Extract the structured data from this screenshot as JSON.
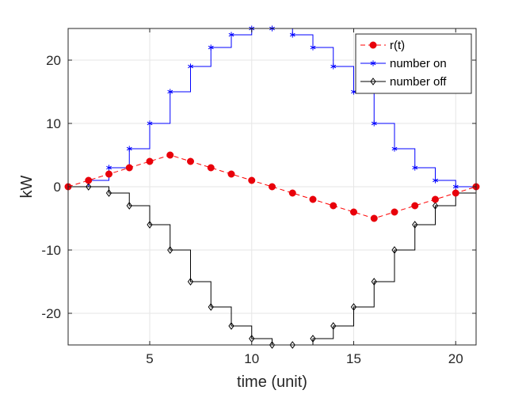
{
  "chart_data": {
    "type": "line",
    "title": "",
    "xlabel": "time (unit)",
    "ylabel": "kW",
    "xlim": [
      1,
      21
    ],
    "ylim": [
      -25,
      25
    ],
    "xticks": [
      5,
      10,
      15,
      20
    ],
    "yticks": [
      -20,
      -10,
      0,
      10,
      20
    ],
    "grid": true,
    "legend_location": "top-right",
    "x": [
      1,
      2,
      3,
      4,
      5,
      6,
      7,
      8,
      9,
      10,
      11,
      12,
      13,
      14,
      15,
      16,
      17,
      18,
      19,
      20,
      21
    ],
    "series": [
      {
        "name": "r(t)",
        "style": "dashed",
        "marker": "circle-filled",
        "color": "#ff0000",
        "marker_color": "#e8000b",
        "values": [
          0,
          1,
          2,
          3,
          4,
          5,
          4,
          3,
          2,
          1,
          0,
          -1,
          -2,
          -3,
          -4,
          -5,
          -4,
          -3,
          -2,
          -1,
          0
        ]
      },
      {
        "name": "number on",
        "style": "stairs",
        "marker": "asterisk",
        "color": "#0000ff",
        "values": [
          0,
          1,
          3,
          6,
          10,
          15,
          19,
          22,
          24,
          25,
          25,
          24,
          22,
          19,
          15,
          10,
          6,
          3,
          1,
          0,
          0
        ]
      },
      {
        "name": "number off",
        "style": "stairs",
        "marker": "diamond-open",
        "color": "#000000",
        "values": [
          0,
          0,
          -1,
          -3,
          -6,
          -10,
          -15,
          -19,
          -22,
          -24,
          -25,
          -25,
          -24,
          -22,
          -19,
          -15,
          -10,
          -6,
          -3,
          -1,
          0
        ]
      }
    ]
  }
}
